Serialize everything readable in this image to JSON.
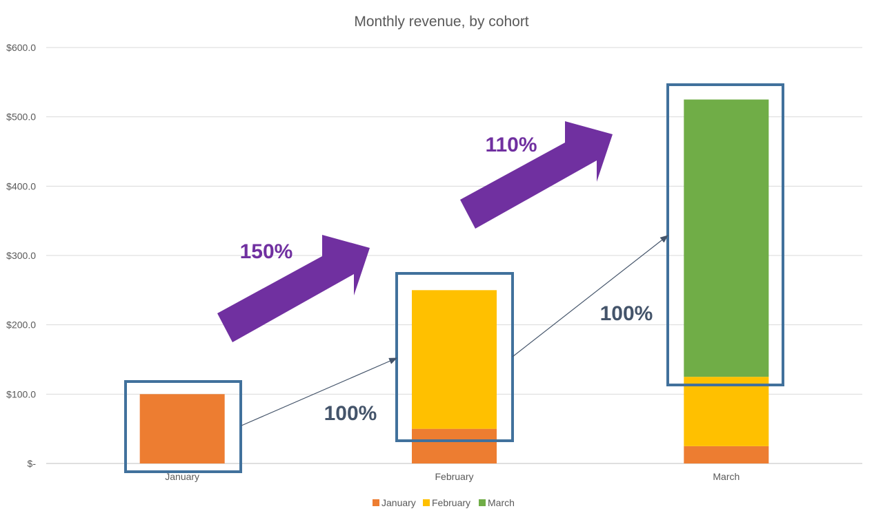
{
  "chart_data": {
    "type": "bar",
    "stacked": true,
    "title": "Monthly revenue, by cohort",
    "xlabel": "",
    "ylabel": "",
    "categories": [
      "January",
      "February",
      "March"
    ],
    "series": [
      {
        "name": "January",
        "color": "#ed7d31",
        "values": [
          100,
          50,
          25
        ]
      },
      {
        "name": "February",
        "color": "#ffc000",
        "values": [
          0,
          200,
          100
        ]
      },
      {
        "name": "March",
        "color": "#70ad47",
        "values": [
          0,
          0,
          400
        ]
      }
    ],
    "ylim": [
      0,
      600
    ],
    "yticks": [
      0,
      100,
      200,
      300,
      400,
      500,
      600
    ],
    "ytick_labels": [
      "$-",
      "$100.0",
      "$200.0",
      "$300.0",
      "$400.0",
      "$500.0",
      "$600.0"
    ],
    "grid": true,
    "legend": "bottom",
    "annotations": {
      "retention": [
        {
          "label": "100%",
          "from": "January",
          "to": "February"
        },
        {
          "label": "100%",
          "from": "February",
          "to": "March"
        }
      ],
      "growth": [
        {
          "label": "150%",
          "from": "January",
          "to": "February"
        },
        {
          "label": "110%",
          "from": "February",
          "to": "March"
        }
      ],
      "highlight": [
        "January total",
        "February total",
        "March total"
      ]
    }
  }
}
